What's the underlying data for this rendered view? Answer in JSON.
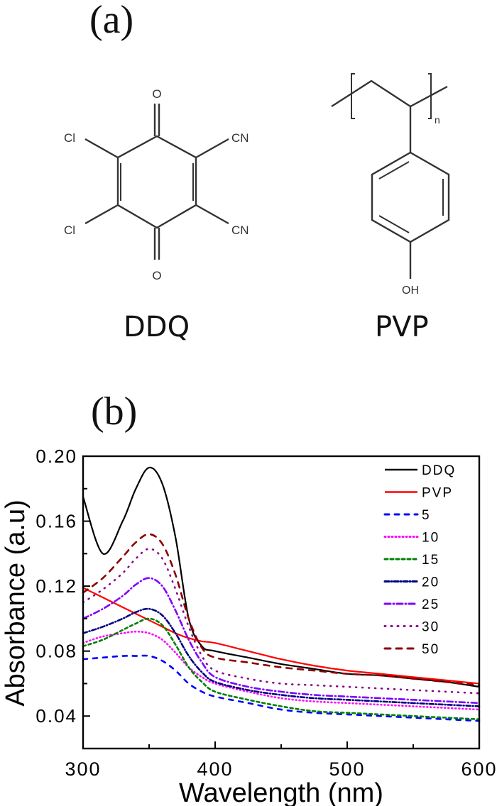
{
  "figure": {
    "panel_a_label": "(a)",
    "panel_b_label": "(b)"
  },
  "structures": {
    "ddq": {
      "name": "DDQ",
      "atoms": {
        "o_top": "O",
        "o_bottom": "O",
        "cl_top": "Cl",
        "cl_bottom": "Cl",
        "cn_top": "CN",
        "cn_bottom": "CN"
      }
    },
    "pvp": {
      "name": "PVP",
      "atoms": {
        "oh": "OH",
        "subscript": "n"
      }
    }
  },
  "chart_data": {
    "type": "line",
    "title": "",
    "xlabel": "Wavelength (nm)",
    "ylabel": "Absorbance (a.u)",
    "xlim": [
      300,
      600
    ],
    "ylim": [
      0.02,
      0.2
    ],
    "xticks": [
      300,
      400,
      500,
      600
    ],
    "xtick_labels": [
      "300",
      "400",
      "500",
      "600"
    ],
    "yticks": [
      0.04,
      0.08,
      0.12,
      0.16,
      0.2
    ],
    "ytick_labels": [
      "0.04",
      "0.08",
      "0.12",
      "0.16",
      "0.20"
    ],
    "grid": false,
    "legend_position": "upper right",
    "x": [
      300,
      315,
      330,
      340,
      350,
      360,
      370,
      380,
      390,
      400,
      425,
      450,
      475,
      500,
      525,
      550,
      575,
      600
    ],
    "series": [
      {
        "name": "DDQ",
        "color": "#000000",
        "dash": "solid",
        "values": [
          0.175,
          0.14,
          0.16,
          0.18,
          0.193,
          0.183,
          0.15,
          0.1,
          0.083,
          0.08,
          0.076,
          0.072,
          0.069,
          0.066,
          0.065,
          0.063,
          0.061,
          0.058
        ]
      },
      {
        "name": "PVP",
        "color": "#ff0000",
        "dash": "solid",
        "values": [
          0.119,
          0.113,
          0.107,
          0.103,
          0.099,
          0.095,
          0.091,
          0.088,
          0.086,
          0.085,
          0.08,
          0.075,
          0.071,
          0.068,
          0.066,
          0.064,
          0.062,
          0.06
        ]
      },
      {
        "name": "5",
        "color": "#0000ff",
        "dash": "6,8",
        "values": [
          0.075,
          0.076,
          0.077,
          0.077,
          0.077,
          0.074,
          0.068,
          0.06,
          0.055,
          0.052,
          0.048,
          0.044,
          0.042,
          0.041,
          0.04,
          0.039,
          0.038,
          0.037
        ]
      },
      {
        "name": "10",
        "color": "#ff00ff",
        "dash": "1,4",
        "values": [
          0.085,
          0.089,
          0.091,
          0.092,
          0.091,
          0.087,
          0.079,
          0.07,
          0.064,
          0.06,
          0.055,
          0.051,
          0.049,
          0.048,
          0.047,
          0.046,
          0.045,
          0.044
        ]
      },
      {
        "name": "15",
        "color": "#008000",
        "dash": "4,4",
        "values": [
          0.083,
          0.087,
          0.093,
          0.097,
          0.1,
          0.096,
          0.084,
          0.07,
          0.061,
          0.055,
          0.05,
          0.046,
          0.043,
          0.042,
          0.041,
          0.04,
          0.039,
          0.038
        ]
      },
      {
        "name": "20",
        "color": "#000080",
        "dash": "6,3,1,3",
        "values": [
          0.091,
          0.095,
          0.1,
          0.104,
          0.106,
          0.102,
          0.091,
          0.077,
          0.067,
          0.061,
          0.056,
          0.053,
          0.051,
          0.05,
          0.049,
          0.048,
          0.047,
          0.046
        ]
      },
      {
        "name": "25",
        "color": "#8000ff",
        "dash": "8,4,1,4",
        "values": [
          0.1,
          0.106,
          0.114,
          0.121,
          0.125,
          0.12,
          0.105,
          0.087,
          0.073,
          0.064,
          0.058,
          0.055,
          0.053,
          0.052,
          0.051,
          0.05,
          0.049,
          0.048
        ]
      },
      {
        "name": "30",
        "color": "#8b008b",
        "dash": "1,8",
        "values": [
          0.11,
          0.118,
          0.128,
          0.137,
          0.143,
          0.137,
          0.118,
          0.095,
          0.077,
          0.068,
          0.063,
          0.06,
          0.059,
          0.058,
          0.057,
          0.056,
          0.055,
          0.054
        ]
      },
      {
        "name": "50",
        "color": "#8b0000",
        "dash": "8,8",
        "values": [
          0.116,
          0.125,
          0.138,
          0.147,
          0.152,
          0.146,
          0.127,
          0.1,
          0.082,
          0.076,
          0.073,
          0.07,
          0.068,
          0.066,
          0.065,
          0.063,
          0.061,
          0.059
        ]
      }
    ]
  }
}
